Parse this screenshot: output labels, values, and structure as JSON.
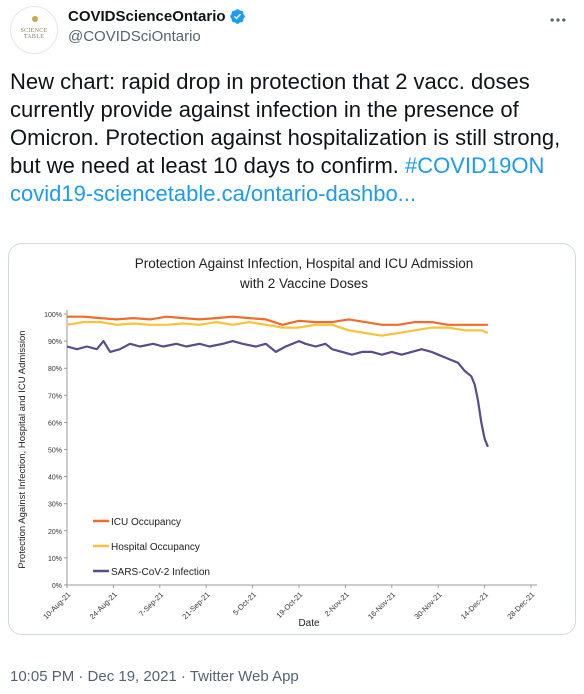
{
  "tweet": {
    "display_name": "COVIDScienceOntario",
    "handle": "@COVIDSciOntario",
    "avatar_text": "SCIENCE TABLE",
    "body_plain": "New chart: rapid drop in protection that 2 vacc. doses currently provide against infection in the presence of Omicron. Protection against hospitalization is still strong, but we need at least 10 days to confirm.",
    "hashtag": "#COVID19ON",
    "link_text": "covid19-sciencetable.ca/ontario-dashbo...",
    "timestamp": "10:05 PM · Dec 19, 2021 · Twitter Web App"
  },
  "icons": {
    "verified": "verified-badge-icon",
    "more": "more-options-icon"
  },
  "colors": {
    "accent": "#1d9bf0",
    "icu": "#f26b2a",
    "hospital": "#f9c23c",
    "infection": "#5b4a8c"
  },
  "chart_data": {
    "type": "line",
    "title_line1": "Protection Against Infection, Hospital and ICU Admission",
    "title_line2": "with 2 Vaccine Doses",
    "xlabel": "Date",
    "ylabel": "Protection Against Infection, Hospital and ICU Admission",
    "ylim": [
      0,
      100
    ],
    "yticks": [
      "0%",
      "10%",
      "20%",
      "30%",
      "40%",
      "50%",
      "60%",
      "70%",
      "80%",
      "90%",
      "100%"
    ],
    "xticks": [
      "10-Aug-21",
      "24-Aug-21",
      "7-Sep-21",
      "21-Sep-21",
      "5-Oct-21",
      "19-Oct-21",
      "2-Nov-21",
      "16-Nov-21",
      "30-Nov-21",
      "14-Dec-21",
      "28-Dec-21"
    ],
    "x_days": [
      0,
      14,
      28,
      42,
      56,
      70,
      84,
      98,
      112,
      126,
      140
    ],
    "legend_position": "bottom-left",
    "series": [
      {
        "name": "ICU Occupancy",
        "color": "#f26b2a",
        "x": [
          0,
          5,
          10,
          15,
          20,
          25,
          30,
          35,
          40,
          45,
          50,
          55,
          60,
          65,
          70,
          75,
          80,
          85,
          90,
          95,
          100,
          105,
          110,
          115,
          120,
          125,
          127
        ],
        "y": [
          99,
          99,
          98.5,
          98,
          98.5,
          98,
          99,
          98.5,
          98,
          98.5,
          99,
          98.5,
          98,
          96,
          97.5,
          97,
          97,
          98,
          97,
          96,
          96,
          97,
          97,
          96,
          96,
          96,
          96
        ]
      },
      {
        "name": "Hospital Occupancy",
        "color": "#f9c23c",
        "x": [
          0,
          5,
          10,
          15,
          20,
          25,
          30,
          35,
          40,
          45,
          50,
          55,
          60,
          65,
          70,
          75,
          80,
          85,
          90,
          95,
          100,
          105,
          110,
          115,
          120,
          125,
          127
        ],
        "y": [
          96,
          97,
          97,
          96,
          96.5,
          96,
          96,
          96.5,
          96,
          97,
          96,
          97,
          96,
          95,
          95,
          96,
          96,
          94,
          93,
          92,
          93,
          94,
          95,
          95,
          94,
          94,
          93
        ]
      },
      {
        "name": "SARS-CoV-2 Infection",
        "color": "#5b4a8c",
        "x": [
          0,
          3,
          6,
          9,
          11,
          13,
          16,
          19,
          22,
          26,
          29,
          33,
          36,
          40,
          43,
          47,
          50,
          53,
          57,
          60,
          63,
          66,
          70,
          72,
          75,
          78,
          80,
          83,
          86,
          89,
          92,
          95,
          98,
          101,
          104,
          107,
          110,
          112,
          114,
          116,
          118,
          120,
          122,
          123,
          124,
          125,
          126,
          127
        ],
        "y": [
          88,
          87,
          88,
          87,
          90,
          86,
          87,
          89,
          88,
          89,
          88,
          89,
          88,
          89,
          88,
          89,
          90,
          89,
          88,
          89,
          86,
          88,
          90,
          89,
          88,
          89,
          87,
          86,
          85,
          86,
          86,
          85,
          86,
          85,
          86,
          87,
          86,
          85,
          84,
          83,
          82,
          79,
          77,
          74,
          68,
          60,
          54,
          51
        ]
      }
    ]
  }
}
